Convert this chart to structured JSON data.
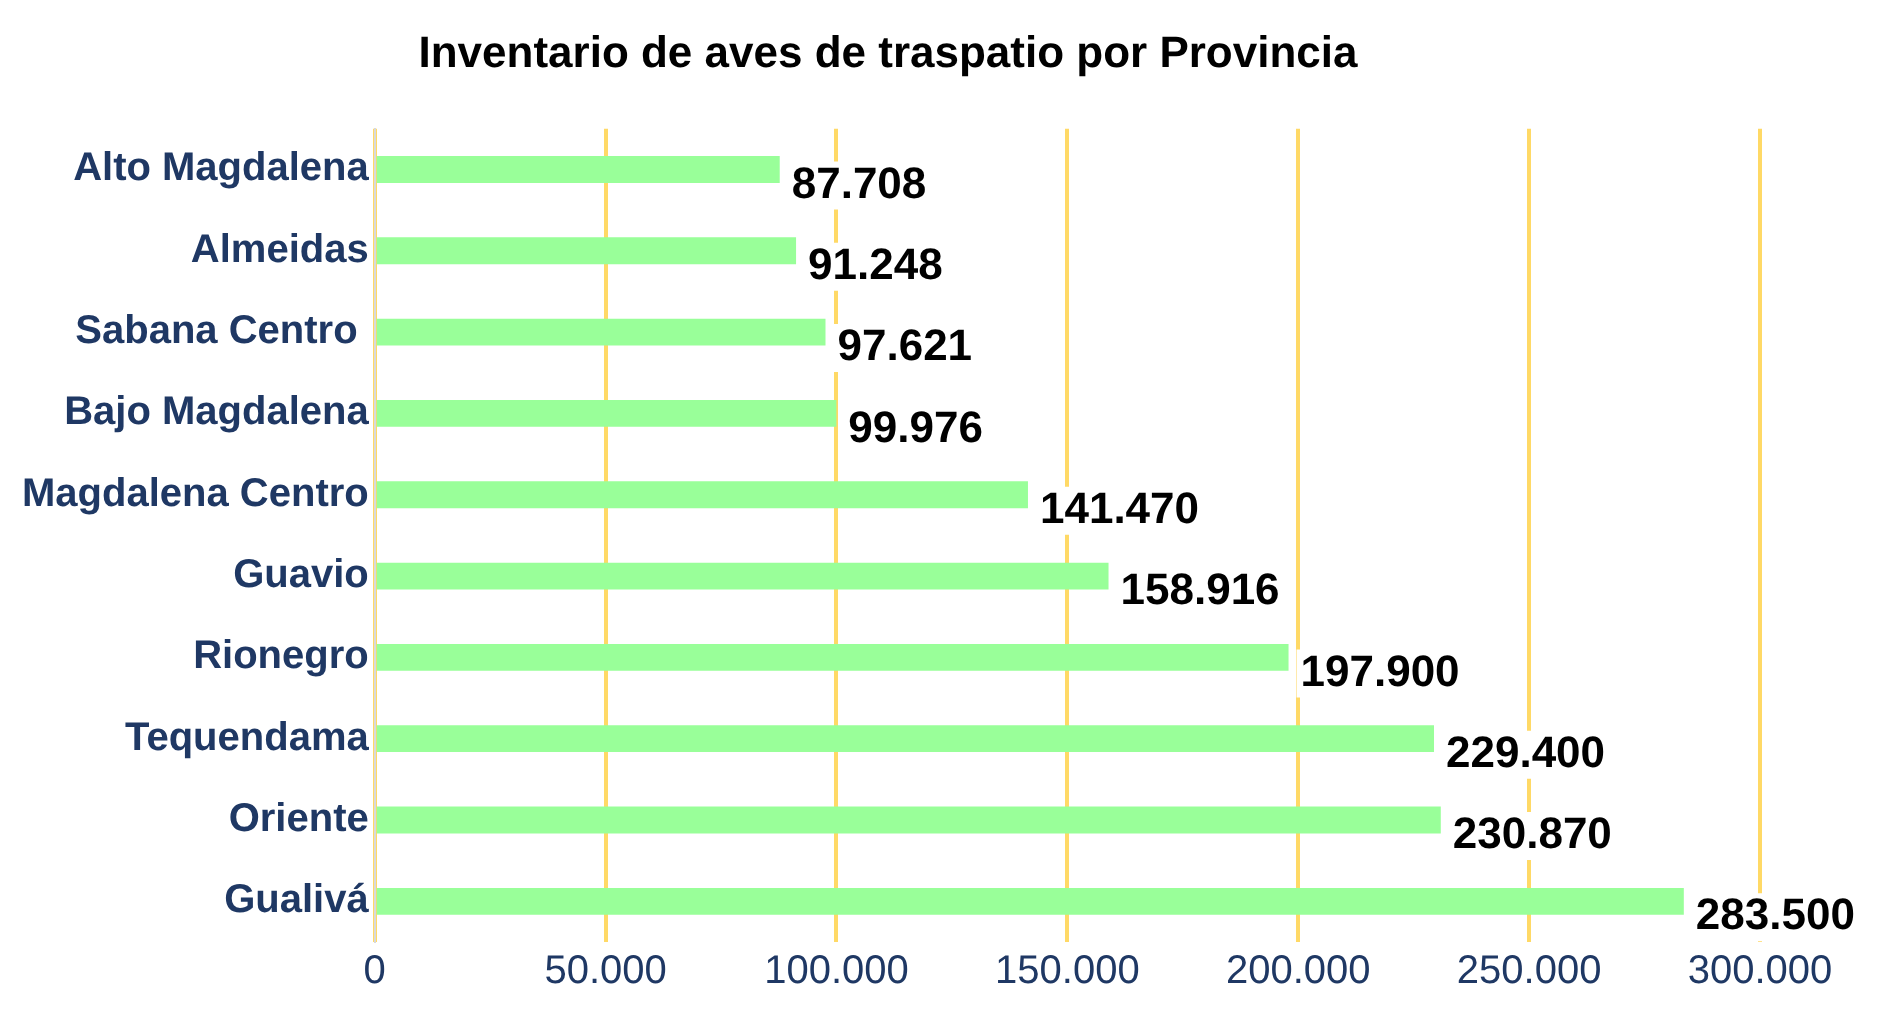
{
  "chart_data": {
    "type": "bar",
    "orientation": "horizontal",
    "title": "Inventario de aves de traspatio por Provincia",
    "categories": [
      "Alto Magdalena",
      "Almeidas",
      "Sabana Centro ",
      "Bajo Magdalena",
      "Magdalena Centro",
      "Guavio",
      "Rionegro",
      "Tequendama",
      "Oriente",
      "Gualivá"
    ],
    "values": [
      87708,
      91248,
      97621,
      99976,
      141470,
      158916,
      197900,
      229400,
      230870,
      283500
    ],
    "value_labels": [
      "87.708",
      "91.248",
      "97.621",
      "99.976",
      "141.470",
      "158.916",
      "197.900",
      "229.400",
      "230.870",
      "283.500"
    ],
    "color": "#99ff99",
    "xlim": [
      0,
      300000
    ],
    "xticks": [
      {
        "value": 0,
        "label": "0"
      },
      {
        "value": 50000,
        "label": "50.000"
      },
      {
        "value": 100000,
        "label": "100.000"
      },
      {
        "value": 150000,
        "label": "150.000"
      },
      {
        "value": 200000,
        "label": "200.000"
      },
      {
        "value": 250000,
        "label": "250.000"
      },
      {
        "value": 300000,
        "label": "300.000"
      }
    ],
    "grid": "x",
    "legend": false
  }
}
